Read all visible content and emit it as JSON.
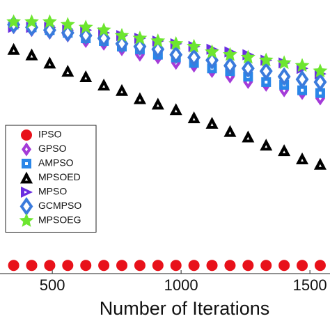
{
  "chart_data": {
    "type": "scatter",
    "x_label": "Number of Iterations",
    "x": [
      350,
      420,
      490,
      560,
      630,
      700,
      770,
      840,
      910,
      980,
      1050,
      1120,
      1190,
      1260,
      1330,
      1400,
      1470,
      1540
    ],
    "xlim": [
      297,
      1578
    ],
    "xticks": [
      500,
      1000,
      1500
    ],
    "ylim": [
      0,
      100
    ],
    "legend": "left",
    "series": [
      {
        "name": "IPSO",
        "color": "#e8111a",
        "marker": "circle",
        "values": [
          3,
          3,
          3,
          3,
          3,
          3,
          3,
          3,
          3,
          3,
          3,
          3,
          3,
          3,
          3,
          3,
          3,
          3
        ]
      },
      {
        "name": "GPSO",
        "color": "#a43bd8",
        "marker": "diamond",
        "values": [
          90,
          89,
          88,
          87,
          85,
          84,
          82,
          80,
          79,
          77,
          76,
          74,
          72,
          70,
          69,
          67,
          66,
          64
        ]
      },
      {
        "name": "AMPSO",
        "color": "#2a86e8",
        "marker": "square",
        "values": [
          91,
          90,
          89,
          88,
          86,
          85,
          83,
          82,
          80,
          79,
          77,
          75,
          74,
          72,
          70,
          69,
          67,
          66
        ]
      },
      {
        "name": "MPSOED",
        "color": "#000000",
        "marker": "triangle",
        "values": [
          82,
          80,
          77,
          74,
          72,
          69,
          67,
          64,
          62,
          60,
          57,
          55,
          52,
          50,
          47,
          45,
          42,
          40
        ]
      },
      {
        "name": "MPSO",
        "color": "#6a2ee0",
        "marker": "right",
        "values": [
          90,
          90,
          90,
          89,
          89,
          88,
          87,
          86,
          85,
          84,
          83,
          82,
          81,
          80,
          78,
          77,
          75,
          73
        ]
      },
      {
        "name": "GCMPSO",
        "color": "#3b7bdc",
        "marker": "odiamond",
        "values": [
          91,
          90,
          89,
          88,
          87,
          86,
          84,
          83,
          82,
          80,
          79,
          78,
          76,
          75,
          74,
          72,
          71,
          70
        ]
      },
      {
        "name": "MPSOEG",
        "color": "#6de62f",
        "marker": "star",
        "values": [
          92,
          92,
          92,
          91,
          90,
          89,
          87,
          86,
          85,
          84,
          83,
          81,
          80,
          79,
          78,
          77,
          76,
          74
        ]
      }
    ]
  }
}
